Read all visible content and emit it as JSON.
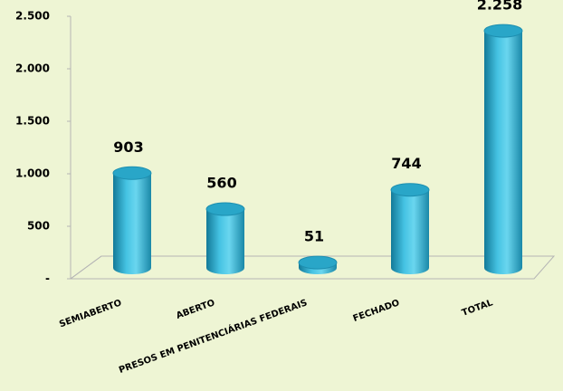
{
  "chart_data": {
    "type": "bar",
    "categories": [
      "SEMIABERTO",
      "ABERTO",
      "PRESOS EM PENITENCIÁRIAS FEDERAIS",
      "FECHADO",
      "TOTAL"
    ],
    "values": [
      903,
      560,
      51,
      744,
      2258
    ],
    "value_labels": [
      "903",
      "560",
      "51",
      "744",
      "2.258"
    ],
    "color": "#29a6c8",
    "ylim": [
      0,
      2500
    ],
    "yticks": [
      {
        "value": 0,
        "label": "-"
      },
      500,
      {
        "value": 1000,
        "label": "1.000"
      },
      {
        "value": 1500,
        "label": "1.500"
      },
      {
        "value": 2000,
        "label": "2.000"
      },
      {
        "value": 2500,
        "label": "2.500"
      }
    ]
  }
}
